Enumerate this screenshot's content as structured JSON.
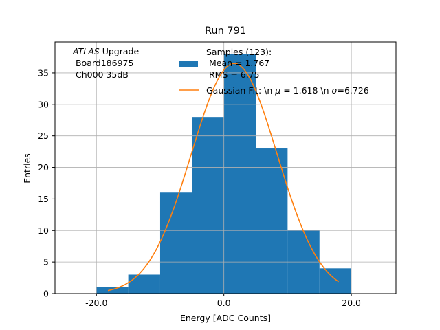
{
  "chart_data": {
    "type": "bar",
    "title": "Run 791",
    "xlabel": "Energy [ADC Counts]",
    "ylabel": "Entries",
    "xlim": [
      -26.5,
      27
    ],
    "ylim": [
      0,
      39.9
    ],
    "grid": true,
    "x_ticks": [
      -20,
      0,
      20
    ],
    "x_tick_labels": [
      "-20.0",
      "0.0",
      "20.0"
    ],
    "y_ticks": [
      0,
      5,
      10,
      15,
      20,
      25,
      30,
      35
    ],
    "y_tick_labels": [
      "0",
      "5",
      "10",
      "15",
      "20",
      "25",
      "30",
      "35"
    ],
    "bin_edges": [
      -20,
      -15,
      -10,
      -5,
      0,
      5,
      10,
      15,
      20
    ],
    "values": [
      1,
      3,
      16,
      28,
      38,
      23,
      10,
      4
    ],
    "fit": {
      "type": "gaussian",
      "mu": 1.618,
      "sigma": 6.726,
      "amplitude": 36.5,
      "x_range": [
        -18.2,
        18
      ]
    },
    "annotation": {
      "experiment": "ATLAS",
      "suffix": " Upgrade",
      "line2": " Board186975",
      "line3": " Ch000 35dB"
    },
    "legend": {
      "position": "top-right",
      "samples_label": "Samples (123):",
      "samples_mean": " Mean = 1.767",
      "samples_rms": " RMS = 6.75",
      "fit_label_prefix": "Gaussian Fit: \\n ",
      "fit_label_mu": " = 1.618 \\n ",
      "fit_label_sigma": "=6.726"
    },
    "colors": {
      "bars": "#1f77b4",
      "fit": "#ff7f0e",
      "grid": "#b0b0b0"
    }
  }
}
